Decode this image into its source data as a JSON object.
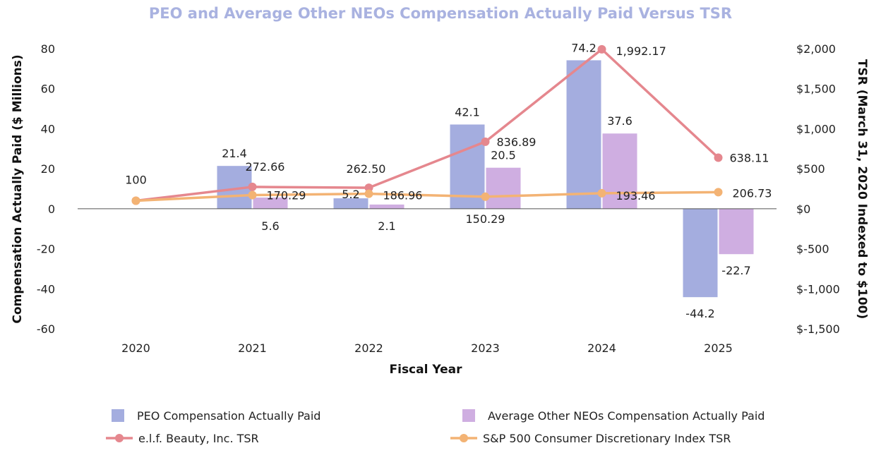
{
  "chart_data": {
    "type": "bar",
    "title": "PEO and Average Other NEOs Compensation Actually Paid Versus TSR",
    "xlabel": "Fiscal Year",
    "ylabel": "Compensation Actually Paid ($ Millions)",
    "y2label": "TSR (March 31, 2020 Indexed to $100)",
    "categories": [
      "2020",
      "2021",
      "2022",
      "2023",
      "2024",
      "2025"
    ],
    "ylim": [
      -60,
      80
    ],
    "y2lim": [
      -1500,
      2000
    ],
    "y_ticks": [
      "80",
      "60",
      "40",
      "20",
      "0",
      "-20",
      "-40",
      "-60"
    ],
    "y_tick_values": [
      80,
      60,
      40,
      20,
      0,
      -20,
      -40,
      -60
    ],
    "y2_ticks": [
      "$2,000",
      "$1,500",
      "$1,000",
      "$500",
      "$0",
      "$-500",
      "$-1,000",
      "$-1,500"
    ],
    "y2_tick_values": [
      2000,
      1500,
      1000,
      500,
      0,
      -500,
      -1000,
      -1500
    ],
    "series": [
      {
        "name": "PEO Compensation Actually Paid",
        "kind": "bar",
        "axis": "left",
        "color": "#a4addf",
        "values": [
          null,
          21.4,
          5.2,
          42.1,
          74.2,
          -44.2
        ],
        "labels": [
          "",
          "21.4",
          "5.2",
          "42.1",
          "74.2",
          "-44.2"
        ]
      },
      {
        "name": "Average Other NEOs Compensation Actually Paid",
        "kind": "bar",
        "axis": "left",
        "color": "#cfaee1",
        "values": [
          null,
          5.6,
          2.1,
          20.5,
          37.6,
          -22.7
        ],
        "labels": [
          "",
          "5.6",
          "2.1",
          "20.5",
          "37.6",
          "-22.7"
        ]
      },
      {
        "name": "e.l.f. Beauty, Inc. TSR",
        "kind": "line",
        "axis": "right",
        "color": "#e5878e",
        "values": [
          100,
          272.66,
          262.5,
          836.89,
          1992.17,
          638.11
        ],
        "labels": [
          "100",
          "272.66",
          "262.50",
          "836.89",
          "1,992.17",
          "638.11"
        ]
      },
      {
        "name": "S&P 500 Consumer Discretionary Index TSR",
        "kind": "line",
        "axis": "right",
        "color": "#f3b374",
        "values": [
          100,
          170.29,
          186.96,
          150.29,
          193.46,
          206.73
        ],
        "labels": [
          "",
          "170.29",
          "186.96",
          "150.29",
          "193.46",
          "206.73"
        ]
      }
    ],
    "legend_position": "bottom"
  }
}
